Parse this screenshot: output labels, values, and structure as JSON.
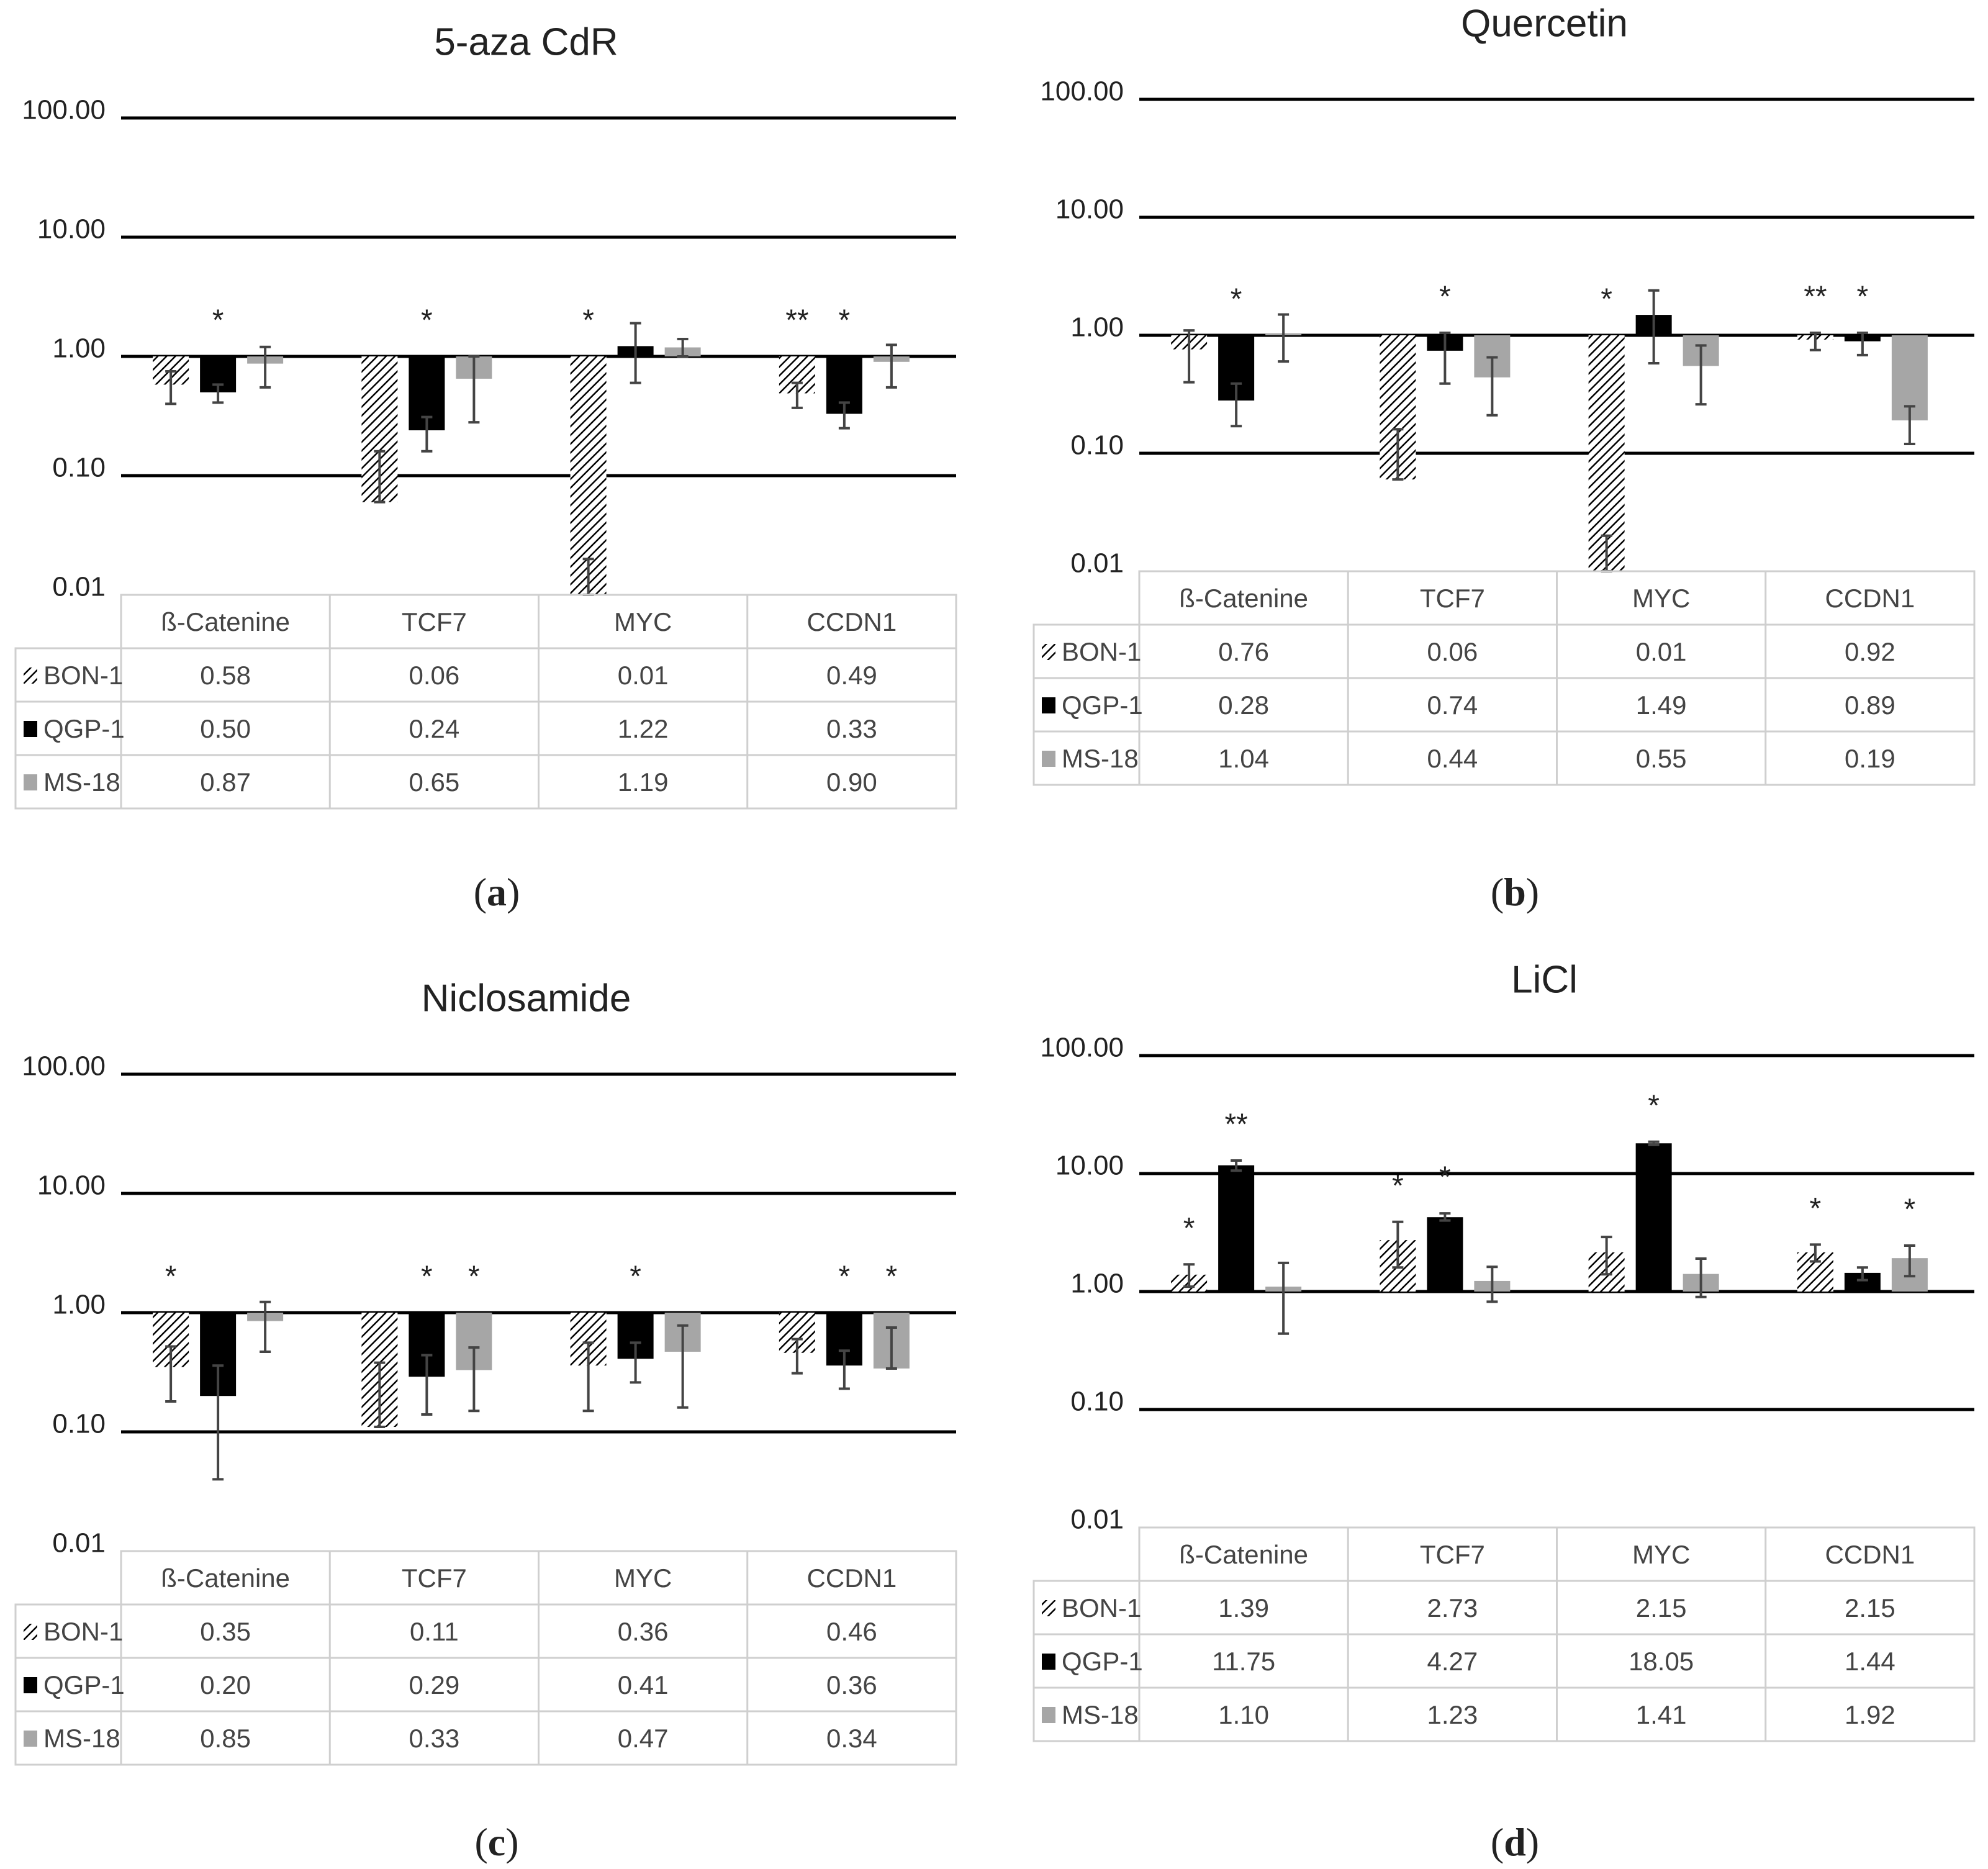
{
  "colors": {
    "bon1": "#ffffff",
    "qgp1": "#000000",
    "ms18": "#a6a6a6",
    "grid": "#000000",
    "table": "#cfcfcf"
  },
  "chart_data": [
    {
      "panel": "a",
      "panel_label": "a",
      "type": "bar",
      "title": "5-aza CdR",
      "y_scale": "log",
      "ylim": [
        0.01,
        100
      ],
      "y_ticks": [
        "100.00",
        "10.00",
        "1.00",
        "0.10",
        "0.01"
      ],
      "categories": [
        "ß-Catenine",
        "TCF7",
        "MYC",
        "CCDN1"
      ],
      "series": [
        {
          "name": "BON-1",
          "pattern": "hatch",
          "values": [
            0.58,
            0.06,
            0.01,
            0.49
          ],
          "err_low": [
            0.4,
            0.06,
            0.01,
            0.37
          ],
          "err_high": [
            0.75,
            0.16,
            0.02,
            0.6
          ]
        },
        {
          "name": "QGP-1",
          "pattern": "solid-black",
          "values": [
            0.5,
            0.24,
            1.22,
            0.33
          ],
          "err_low": [
            0.41,
            0.16,
            0.6,
            0.25
          ],
          "err_high": [
            0.58,
            0.31,
            1.9,
            0.41
          ]
        },
        {
          "name": "MS-18",
          "pattern": "solid-gray",
          "values": [
            0.87,
            0.65,
            1.19,
            0.9
          ],
          "err_low": [
            0.55,
            0.28,
            1.0,
            0.55
          ],
          "err_high": [
            1.2,
            1.0,
            1.4,
            1.25
          ]
        }
      ],
      "table_values": [
        [
          "0.58",
          "0.06",
          "0.01",
          "0.49"
        ],
        [
          "0.50",
          "0.24",
          "1.22",
          "0.33"
        ],
        [
          "0.87",
          "0.65",
          "1.19",
          "0.90"
        ]
      ],
      "annotations": [
        {
          "text": "*",
          "category": 0,
          "series": 1
        },
        {
          "text": "*",
          "category": 1,
          "series": 1
        },
        {
          "text": "*",
          "category": 2,
          "series": 0
        },
        {
          "text": "**",
          "category": 3,
          "series": 0
        },
        {
          "text": "*",
          "category": 3,
          "series": 1
        }
      ]
    },
    {
      "panel": "b",
      "panel_label": "b",
      "type": "bar",
      "title": "Quercetin",
      "y_scale": "log",
      "ylim": [
        0.01,
        100
      ],
      "y_ticks": [
        "100.00",
        "10.00",
        "1.00",
        "0.10",
        "0.01"
      ],
      "categories": [
        "ß-Catenine",
        "TCF7",
        "MYC",
        "CCDN1"
      ],
      "series": [
        {
          "name": "BON-1",
          "pattern": "hatch",
          "values": [
            0.76,
            0.06,
            0.01,
            0.92
          ],
          "err_low": [
            0.4,
            0.06,
            0.01,
            0.75
          ],
          "err_high": [
            1.1,
            0.16,
            0.02,
            1.05
          ]
        },
        {
          "name": "QGP-1",
          "pattern": "solid-black",
          "values": [
            0.28,
            0.74,
            1.49,
            0.89
          ],
          "err_low": [
            0.17,
            0.39,
            0.58,
            0.68
          ],
          "err_high": [
            0.39,
            1.05,
            2.4,
            1.05
          ]
        },
        {
          "name": "MS-18",
          "pattern": "solid-gray",
          "values": [
            1.04,
            0.44,
            0.55,
            0.19
          ],
          "err_low": [
            0.6,
            0.21,
            0.26,
            0.12
          ],
          "err_high": [
            1.5,
            0.65,
            0.82,
            0.25
          ]
        }
      ],
      "table_values": [
        [
          "0.76",
          "0.06",
          "0.01",
          "0.92"
        ],
        [
          "0.28",
          "0.74",
          "1.49",
          "0.89"
        ],
        [
          "1.04",
          "0.44",
          "0.55",
          "0.19"
        ]
      ],
      "annotations": [
        {
          "text": "*",
          "category": 0,
          "series": 1
        },
        {
          "text": "*",
          "category": 1,
          "series": 1
        },
        {
          "text": "*",
          "category": 2,
          "series": 0
        },
        {
          "text": "**",
          "category": 3,
          "series": 0
        },
        {
          "text": "*",
          "category": 3,
          "series": 1
        }
      ]
    },
    {
      "panel": "c",
      "panel_label": "c",
      "type": "bar",
      "title": "Niclosamide",
      "y_scale": "log",
      "ylim": [
        0.01,
        100
      ],
      "y_ticks": [
        "100.00",
        "10.00",
        "1.00",
        "0.10",
        "0.01"
      ],
      "categories": [
        "ß-Catenine",
        "TCF7",
        "MYC",
        "CCDN1"
      ],
      "series": [
        {
          "name": "BON-1",
          "pattern": "hatch",
          "values": [
            0.35,
            0.11,
            0.36,
            0.46
          ],
          "err_low": [
            0.18,
            0.11,
            0.15,
            0.31
          ],
          "err_high": [
            0.52,
            0.38,
            0.56,
            0.6
          ]
        },
        {
          "name": "QGP-1",
          "pattern": "solid-black",
          "values": [
            0.2,
            0.29,
            0.41,
            0.36
          ],
          "err_low": [
            0.04,
            0.14,
            0.26,
            0.23
          ],
          "err_high": [
            0.36,
            0.44,
            0.56,
            0.48
          ]
        },
        {
          "name": "MS-18",
          "pattern": "solid-gray",
          "values": [
            0.85,
            0.33,
            0.47,
            0.34
          ],
          "err_low": [
            0.47,
            0.15,
            0.16,
            0.34
          ],
          "err_high": [
            1.23,
            0.51,
            0.78,
            0.75
          ]
        }
      ],
      "table_values": [
        [
          "0.35",
          "0.11",
          "0.36",
          "0.46"
        ],
        [
          "0.20",
          "0.29",
          "0.41",
          "0.36"
        ],
        [
          "0.85",
          "0.33",
          "0.47",
          "0.34"
        ]
      ],
      "annotations": [
        {
          "text": "*",
          "category": 0,
          "series": 0
        },
        {
          "text": "*",
          "category": 1,
          "series": 1
        },
        {
          "text": "*",
          "category": 1,
          "series": 2
        },
        {
          "text": "*",
          "category": 2,
          "series": 1
        },
        {
          "text": "*",
          "category": 3,
          "series": 1
        },
        {
          "text": "*",
          "category": 3,
          "series": 2
        }
      ]
    },
    {
      "panel": "d",
      "panel_label": "d",
      "type": "bar",
      "title": "LiCl",
      "y_scale": "log",
      "ylim": [
        0.01,
        100
      ],
      "y_ticks": [
        "100.00",
        "10.00",
        "1.00",
        "0.10",
        "0.01"
      ],
      "categories": [
        "ß-Catenine",
        "TCF7",
        "MYC",
        "CCDN1"
      ],
      "series": [
        {
          "name": "BON-1",
          "pattern": "hatch",
          "values": [
            1.39,
            2.73,
            2.15,
            2.15
          ],
          "err_low": [
            1.1,
            1.6,
            1.4,
            1.8
          ],
          "err_high": [
            1.7,
            3.9,
            2.9,
            2.5
          ]
        },
        {
          "name": "QGP-1",
          "pattern": "solid-black",
          "values": [
            11.75,
            4.27,
            18.05,
            1.44
          ],
          "err_low": [
            10.6,
            4.0,
            17.5,
            1.25
          ],
          "err_high": [
            12.9,
            4.6,
            18.6,
            1.6
          ]
        },
        {
          "name": "MS-18",
          "pattern": "solid-gray",
          "values": [
            1.1,
            1.23,
            1.41,
            1.92
          ],
          "err_low": [
            0.44,
            0.82,
            0.9,
            1.35
          ],
          "err_high": [
            1.75,
            1.62,
            1.9,
            2.45
          ]
        }
      ],
      "table_values": [
        [
          "1.39",
          "2.73",
          "2.15",
          "2.15"
        ],
        [
          "11.75",
          "4.27",
          "18.05",
          "1.44"
        ],
        [
          "1.10",
          "1.23",
          "1.41",
          "1.92"
        ]
      ],
      "annotations": [
        {
          "text": "*",
          "category": 0,
          "series": 0
        },
        {
          "text": "**",
          "category": 0,
          "series": 1
        },
        {
          "text": "*",
          "category": 1,
          "series": 0
        },
        {
          "text": "*",
          "category": 1,
          "series": 1
        },
        {
          "text": "*",
          "category": 2,
          "series": 1
        },
        {
          "text": "*",
          "category": 3,
          "series": 0
        },
        {
          "text": "*",
          "category": 3,
          "series": 2
        }
      ]
    }
  ]
}
